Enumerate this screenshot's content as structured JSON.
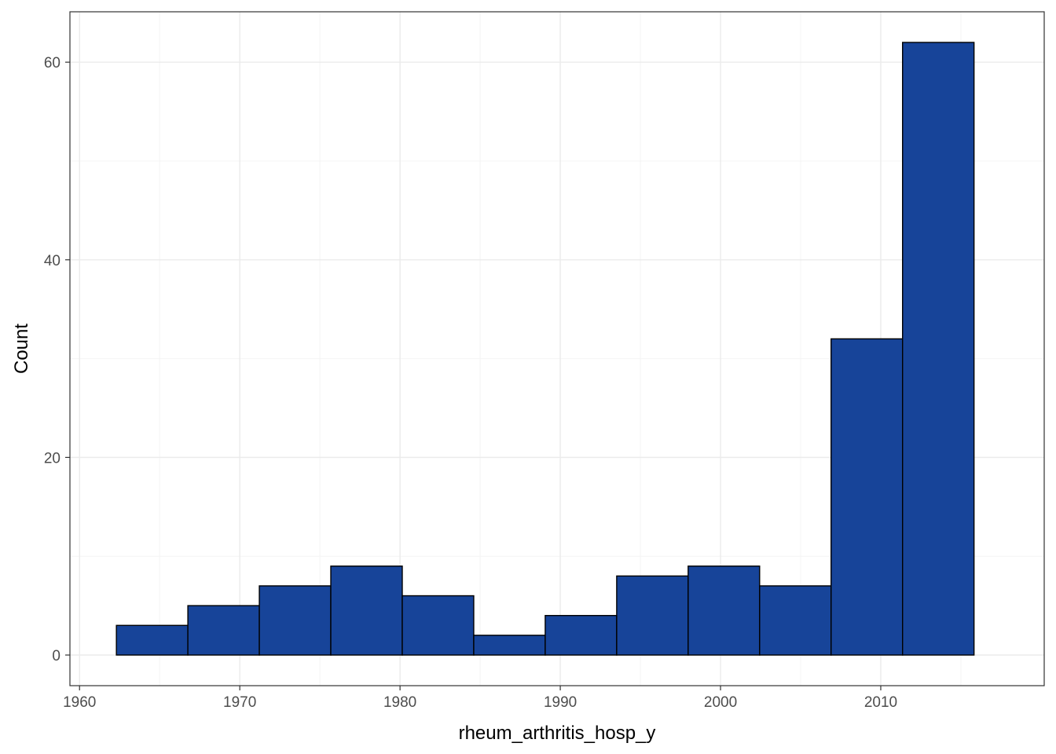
{
  "chart_data": {
    "type": "bar",
    "subtype": "histogram",
    "title": "",
    "xlabel": "rheum_arthritis_hosp_y",
    "ylabel": "Count",
    "xlim": [
      1959.4,
      2020.2
    ],
    "ylim": [
      -3.1,
      65.1
    ],
    "x_ticks": [
      1960,
      1970,
      1980,
      1990,
      2000,
      2010
    ],
    "y_ticks": [
      0,
      20,
      40,
      60
    ],
    "grid": true,
    "legend": "none",
    "bin_edges": [
      1962.3,
      1966.76,
      1971.22,
      1975.68,
      1980.14,
      1984.6,
      1989.06,
      1993.52,
      1997.98,
      2002.44,
      2006.9,
      2011.36,
      2015.82
    ],
    "values": [
      3,
      5,
      7,
      9,
      6,
      2,
      4,
      8,
      9,
      7,
      32,
      62
    ],
    "colors": {
      "bar_fill": "#174499",
      "bar_stroke": "#000000",
      "grid_major": "#ebebeb",
      "grid_minor": "#f4f4f4",
      "panel_border": "#333333"
    }
  }
}
